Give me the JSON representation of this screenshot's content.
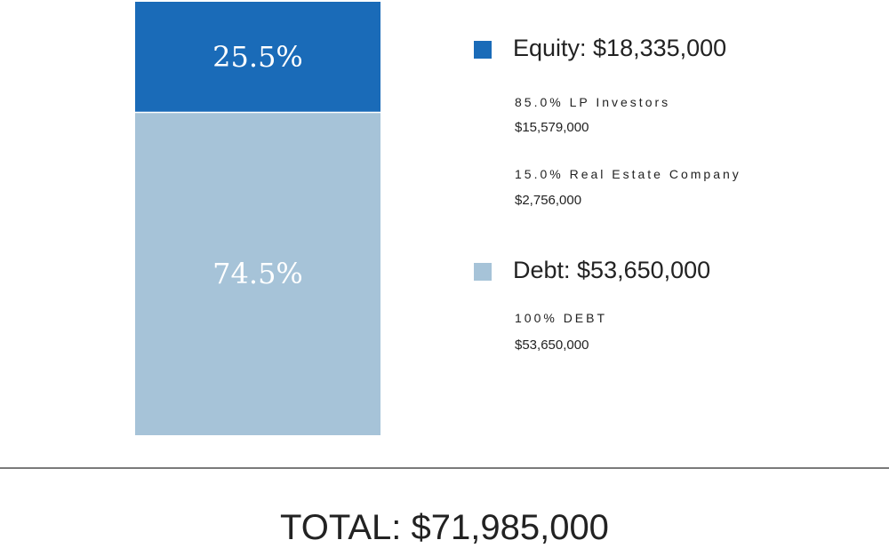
{
  "chart_data": {
    "type": "bar",
    "stacked": true,
    "series": [
      {
        "name": "Equity",
        "percent": 25.5,
        "label": "25.5%",
        "color": "#1a6bb8"
      },
      {
        "name": "Debt",
        "percent": 74.5,
        "label": "74.5%",
        "color": "#a6c3d8"
      }
    ],
    "legend": [
      {
        "heading": "Equity: $18,335,000",
        "color": "#1a6bb8",
        "items": [
          {
            "label": "85.0% LP Investors",
            "amount": "$15,579,000"
          },
          {
            "label": "15.0% Real Estate Company",
            "amount": "$2,756,000"
          }
        ]
      },
      {
        "heading": "Debt: $53,650,000",
        "color": "#a6c3d8",
        "items": [
          {
            "label": "100% DEBT",
            "amount": "$53,650,000"
          }
        ]
      }
    ],
    "total": "TOTAL: $71,985,000"
  }
}
